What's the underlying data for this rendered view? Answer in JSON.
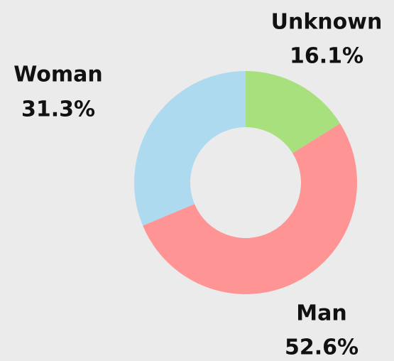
{
  "chart_data": {
    "type": "donut",
    "categories": [
      "Unknown",
      "Man",
      "Woman"
    ],
    "values": [
      16.1,
      52.6,
      31.3
    ],
    "value_labels": [
      "16.1%",
      "52.6%",
      "31.3%"
    ],
    "colors": [
      "#a8e07e",
      "#ff9494",
      "#aedaf0"
    ]
  }
}
